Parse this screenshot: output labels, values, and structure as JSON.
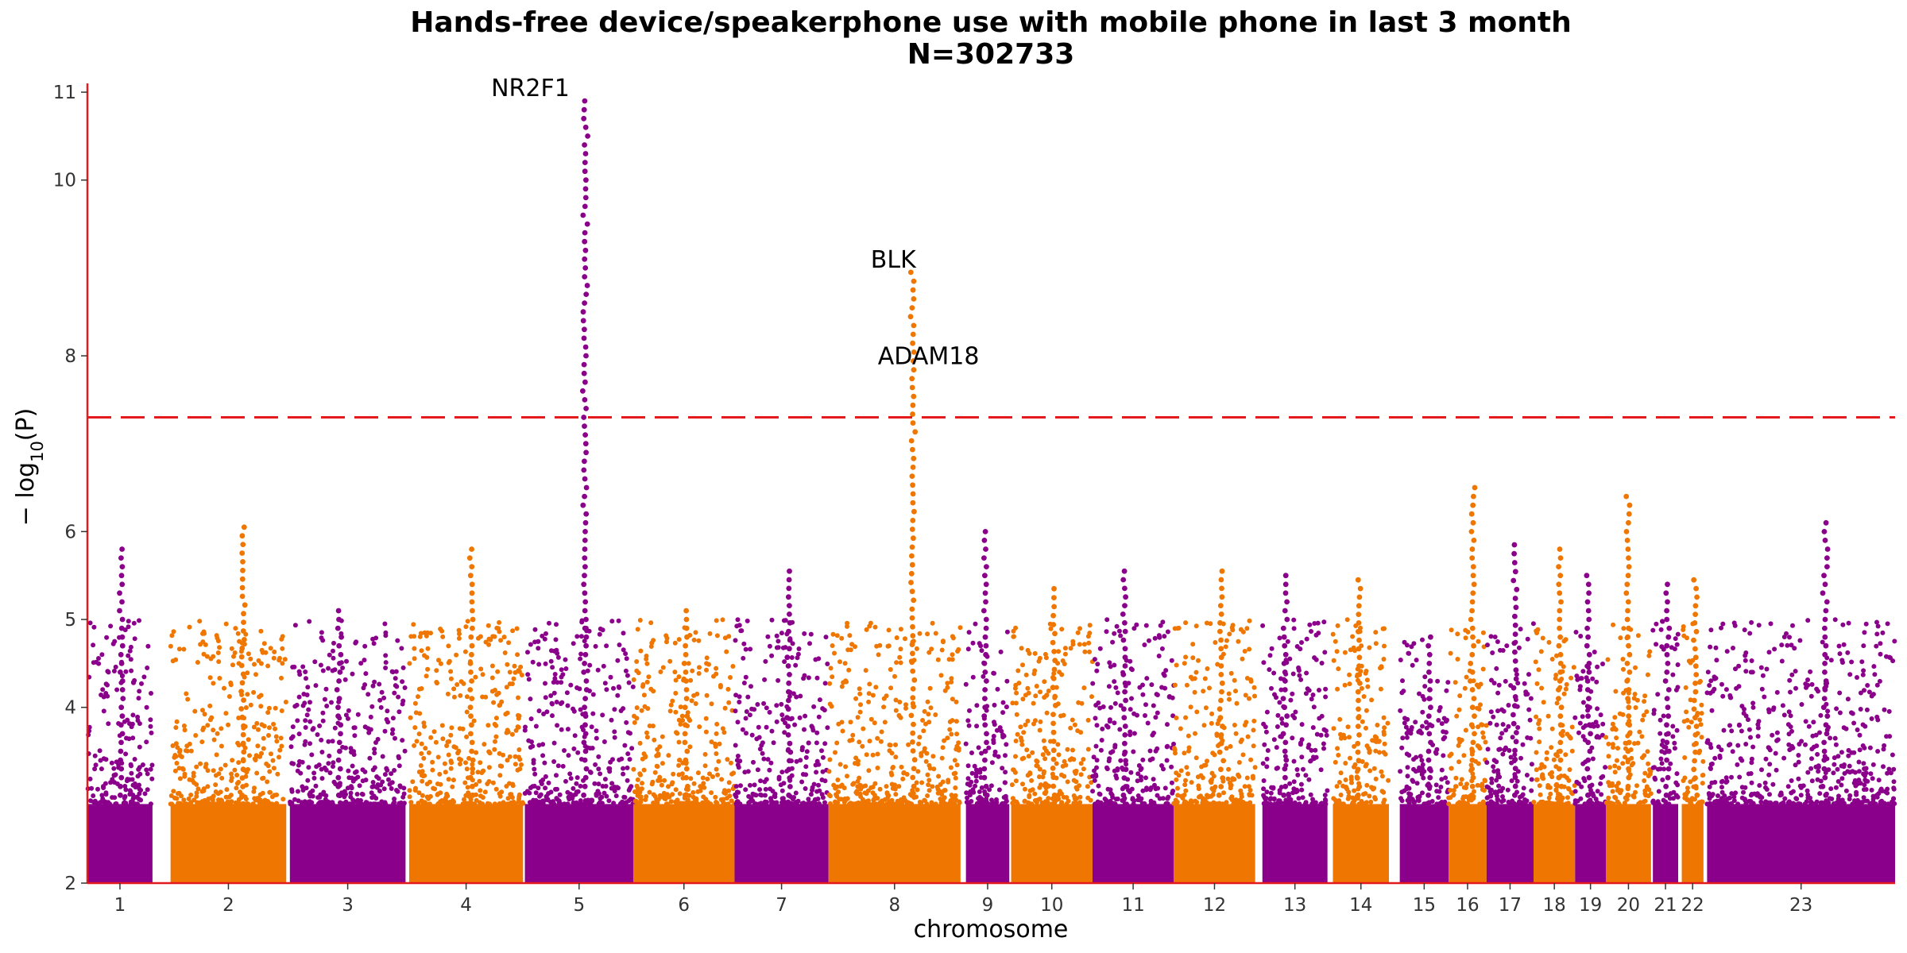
{
  "chart_data": {
    "type": "scatter",
    "subtype": "manhattan",
    "title": "Hands-free device/speakerphone use with mobile phone in last 3 month",
    "subtitle": "N=302733",
    "xlabel": "chromosome",
    "ylabel": "−log10(P)",
    "ylabel_main": "− log",
    "ylabel_sub": "10",
    "ylabel_arg": "(P)",
    "ylim": [
      2,
      11.1
    ],
    "yticks": [
      2,
      4,
      5,
      6,
      8,
      10,
      11
    ],
    "ytick_labels": [
      "2",
      "4",
      "5",
      "6",
      "8",
      "10",
      "11"
    ],
    "significance_line": 7.3,
    "significance_color": "#e41a1c",
    "axis_color": "#e41a1c",
    "colors": {
      "odd": "#8b008b",
      "even": "#ef7600"
    },
    "chromosomes": [
      {
        "label": "1",
        "start": 0.0,
        "end": 3.6,
        "peak": 5.8
      },
      {
        "label": "2",
        "start": 4.6,
        "end": 11.0,
        "peak": 6.05
      },
      {
        "label": "3",
        "start": 11.2,
        "end": 17.6,
        "peak": 5.1
      },
      {
        "label": "4",
        "start": 17.8,
        "end": 24.1,
        "peak": 5.8
      },
      {
        "label": "5",
        "start": 24.2,
        "end": 30.2,
        "peak": 10.9
      },
      {
        "label": "6",
        "start": 30.2,
        "end": 35.8,
        "peak": 5.1
      },
      {
        "label": "7",
        "start": 35.8,
        "end": 41.0,
        "peak": 5.55
      },
      {
        "label": "8",
        "start": 41.0,
        "end": 48.3,
        "peak": 8.95
      },
      {
        "label": "9",
        "start": 48.6,
        "end": 51.0,
        "peak": 6.0
      },
      {
        "label": "10",
        "start": 51.1,
        "end": 55.6,
        "peak": 5.35
      },
      {
        "label": "11",
        "start": 55.6,
        "end": 60.1,
        "peak": 5.55
      },
      {
        "label": "12",
        "start": 60.1,
        "end": 64.6,
        "peak": 5.55
      },
      {
        "label": "13",
        "start": 65.0,
        "end": 68.6,
        "peak": 5.5
      },
      {
        "label": "14",
        "start": 68.9,
        "end": 72.0,
        "peak": 5.45
      },
      {
        "label": "15",
        "start": 72.6,
        "end": 75.3,
        "peak": 4.8
      },
      {
        "label": "16",
        "start": 75.3,
        "end": 77.4,
        "peak": 6.5
      },
      {
        "label": "17",
        "start": 77.4,
        "end": 80.0,
        "peak": 5.85
      },
      {
        "label": "18",
        "start": 80.0,
        "end": 82.3,
        "peak": 5.8
      },
      {
        "label": "19",
        "start": 82.3,
        "end": 84.0,
        "peak": 5.5
      },
      {
        "label": "20",
        "start": 84.0,
        "end": 86.5,
        "peak": 6.4
      },
      {
        "label": "21",
        "start": 86.6,
        "end": 88.0,
        "peak": 5.4
      },
      {
        "label": "22",
        "start": 88.2,
        "end": 89.4,
        "peak": 5.45
      },
      {
        "label": "23",
        "start": 89.6,
        "end": 100.0,
        "peak": 6.1
      }
    ],
    "annotations": [
      {
        "label": "NR2F1",
        "chrom": "5",
        "y": 10.9
      },
      {
        "label": "BLK",
        "chrom": "8",
        "y": 8.95
      },
      {
        "label": "ADAM18",
        "chrom": "8",
        "y": 7.85
      }
    ]
  }
}
